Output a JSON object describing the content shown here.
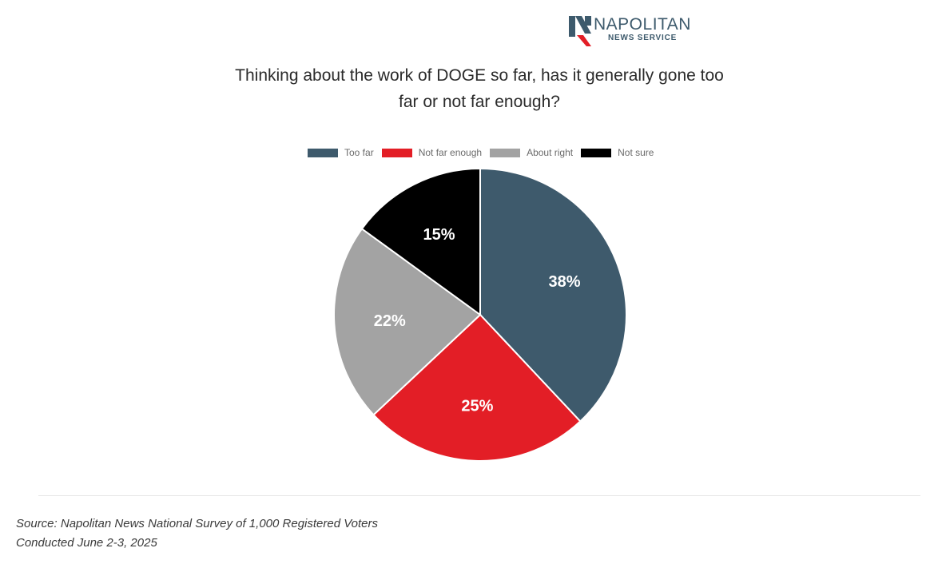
{
  "brand": {
    "name": "NAPOLITAN",
    "sub": "NEWS SERVICE",
    "accent": "#3d5a6c",
    "accent2": "#e31e26"
  },
  "chart_data": {
    "type": "pie",
    "title": "Thinking about the work of DOGE so far, has it generally gone too far or not far enough?",
    "categories": [
      "Too far",
      "Not far enough",
      "About right",
      "Not sure"
    ],
    "values": [
      38,
      25,
      22,
      15
    ],
    "value_labels": [
      "38%",
      "25%",
      "22%",
      "15%"
    ],
    "colors": [
      "#3e5a6c",
      "#e31e26",
      "#a3a3a3",
      "#000000"
    ],
    "legend_position": "top"
  },
  "footer": {
    "source_line1": "Source: Napolitan News National Survey of 1,000 Registered Voters",
    "source_line2": "Conducted June 2-3, 2025"
  }
}
